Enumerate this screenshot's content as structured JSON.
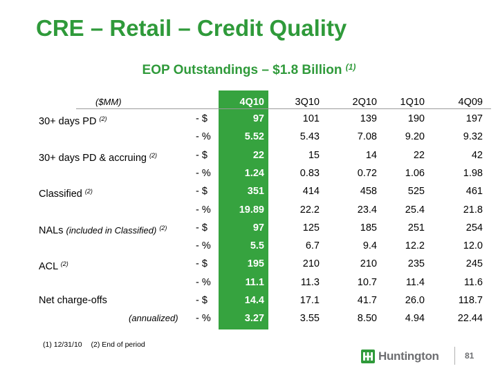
{
  "title": "CRE – Retail – Credit Quality",
  "subtitle": "EOP Outstandings – $1.8 Billion",
  "subtitle_note": "(1)",
  "table": {
    "unit_label": "($MM)",
    "columns": [
      "4Q10",
      "3Q10",
      "2Q10",
      "1Q10",
      "4Q09"
    ],
    "rows": [
      {
        "label": "30+ days PD",
        "note": "(2)",
        "unit": "- $",
        "values": [
          "97",
          "101",
          "139",
          "190",
          "197"
        ]
      },
      {
        "label": "",
        "note": "",
        "unit": "- %",
        "values": [
          "5.52",
          "5.43",
          "7.08",
          "9.20",
          "9.32"
        ]
      },
      {
        "label": "30+ days PD & accruing",
        "note": "(2)",
        "unit": "- $",
        "values": [
          "22",
          "15",
          "14",
          "22",
          "42"
        ]
      },
      {
        "label": "",
        "note": "",
        "unit": "- %",
        "values": [
          "1.24",
          "0.83",
          "0.72",
          "1.06",
          "1.98"
        ]
      },
      {
        "label": "Classified",
        "note": "(2)",
        "unit": "- $",
        "values": [
          "351",
          "414",
          "458",
          "525",
          "461"
        ]
      },
      {
        "label": "",
        "note": "",
        "unit": "- %",
        "values": [
          "19.89",
          "22.2",
          "23.4",
          "25.4",
          "21.8"
        ]
      },
      {
        "label": "NALs",
        "label_italic": "(included in Classified)",
        "note": "(2)",
        "unit": "- $",
        "values": [
          "97",
          "125",
          "185",
          "251",
          "254"
        ]
      },
      {
        "label": "",
        "note": "",
        "unit": "- %",
        "values": [
          "5.5",
          "6.7",
          "9.4",
          "12.2",
          "12.0"
        ]
      },
      {
        "label": "ACL",
        "note": "(2)",
        "unit": "- $",
        "values": [
          "195",
          "210",
          "210",
          "235",
          "245"
        ]
      },
      {
        "label": "",
        "note": "",
        "unit": "- %",
        "values": [
          "11.1",
          "11.3",
          "10.7",
          "11.4",
          "11.6"
        ]
      },
      {
        "label": "Net charge-offs",
        "note": "",
        "unit": "- $",
        "values": [
          "14.4",
          "17.1",
          "41.7",
          "26.0",
          "118.7"
        ]
      },
      {
        "label": "",
        "label_italic": "(annualized)",
        "note": "",
        "unit": "- %",
        "values": [
          "3.27",
          "3.55",
          "8.50",
          "4.94",
          "22.44"
        ]
      }
    ]
  },
  "footnotes": [
    "(1)  12/31/10",
    "(2)   End of period"
  ],
  "logo_text": "Huntington",
  "page_number": "81",
  "colors": {
    "brand_green": "#2f9a3a",
    "highlight_column": "#36a33f",
    "logo_grey": "#6d6e71"
  }
}
